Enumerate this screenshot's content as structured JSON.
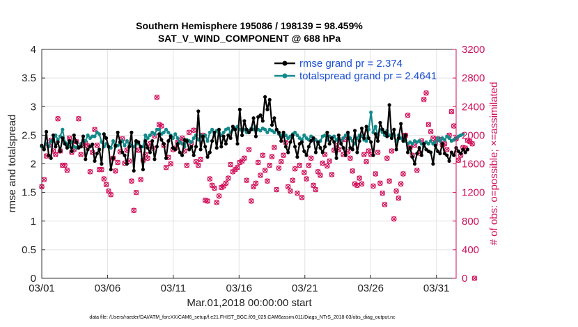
{
  "chart_data": {
    "type": "line",
    "title": "Southern Hemisphere 195086 / 198139 = 98.459%",
    "subtitle": "SAT_V_WIND_COMPONENT @ 688 hPa",
    "xlabel": "Mar.01,2018 00:00:00 start",
    "ylabel": "rmse and totalspread",
    "ylabel_right": "# of obs: o=possible; ×=assimilated",
    "footer": "data file: /Users/raeder/DAI/ATM_forcXX/CAM6_setup/f.e21.FHIST_BGC.f09_025.CAM6assim.011/Diags_NTrS_2018-03/obs_diag_output.nc",
    "x_ticks": [
      "03/01",
      "03/06",
      "03/11",
      "03/16",
      "03/21",
      "03/26",
      "03/31"
    ],
    "y_ticks": [
      "0",
      "0.5",
      "1",
      "1.5",
      "2",
      "2.5",
      "3",
      "3.5",
      "4"
    ],
    "y2_ticks": [
      "0",
      "400",
      "800",
      "1200",
      "1600",
      "2000",
      "2400",
      "2800",
      "3200"
    ],
    "xlim": [
      1,
      32.5
    ],
    "ylim": [
      0,
      4
    ],
    "y2lim": [
      0,
      3200
    ],
    "grid": true,
    "legend_position": "top-right",
    "colors": {
      "rmse": "#000000",
      "totalspread": "#138a8a",
      "obs": "#d1105a",
      "legend_text": "#1a4fd6"
    },
    "series": [
      {
        "name": "rmse grand pr = 2.374",
        "axis": "left",
        "values": [
          2.32,
          2.25,
          2.56,
          2.15,
          2.1,
          2.5,
          2.3,
          2.38,
          2.22,
          2.45,
          2.35,
          2.28,
          2.4,
          2.22,
          2.5,
          2.38,
          2.28,
          2.3,
          2.48,
          2.08,
          2.25,
          2.3,
          2.34,
          2.05,
          2.18,
          2.25,
          2.0,
          2.52,
          2.45,
          2.3,
          1.9,
          2.1,
          2.32,
          2.55,
          2.38,
          2.2,
          2.15,
          2.0,
          2.3,
          2.55,
          1.88,
          2.4,
          2.38,
          2.3,
          1.9,
          2.4,
          2.28,
          2.2,
          2.4,
          2.08,
          2.3,
          2.52,
          2.42,
          2.35,
          2.1,
          2.4,
          2.48,
          2.28,
          2.25,
          2.35,
          2.2,
          2.15,
          2.42,
          2.4,
          2.25,
          2.3,
          2.15,
          2.3,
          2.92,
          2.25,
          2.48,
          2.3,
          2.12,
          2.2,
          2.4,
          2.55,
          2.28,
          2.6,
          2.3,
          2.48,
          2.35,
          2.5,
          2.45,
          2.65,
          2.6,
          2.35,
          2.95,
          2.5,
          2.75,
          2.6,
          2.55,
          2.6,
          2.8,
          2.48,
          2.82,
          2.85,
          2.75,
          3.17,
          2.95,
          3.12,
          2.68,
          2.8,
          2.6,
          2.55,
          2.4,
          2.55,
          2.3,
          2.2,
          2.38,
          2.5,
          2.3,
          2.12,
          2.35,
          2.38,
          2.22,
          2.15,
          2.3,
          2.4,
          2.45,
          2.2,
          2.38,
          2.28,
          2.2,
          2.3,
          2.55,
          2.35,
          2.45,
          2.38,
          2.1,
          2.5,
          2.35,
          2.28,
          2.15,
          2.55,
          2.28,
          2.25,
          2.58,
          2.2,
          2.4,
          2.62,
          2.45,
          2.65,
          2.45,
          2.38,
          2.15,
          2.52,
          2.4,
          2.72,
          2.6,
          2.55,
          2.48,
          3.03,
          2.45,
          2.6,
          2.25,
          2.45,
          2.7,
          2.4,
          2.5,
          2.2,
          2.28,
          2.12,
          2.0,
          2.18,
          2.28,
          2.15,
          2.35,
          2.25,
          2.22,
          2.2,
          2.0,
          2.32,
          2.22,
          2.18,
          2.35,
          2.18,
          2.15,
          2.05,
          2.2,
          2.15,
          2.28,
          2.22,
          2.18,
          2.25,
          2.2,
          2.25
        ]
      },
      {
        "name": "totalspread grand pr = 2.4641",
        "axis": "left",
        "values": [
          2.3,
          2.28,
          2.35,
          2.3,
          2.4,
          2.4,
          2.5,
          2.42,
          2.48,
          2.6,
          2.38,
          2.35,
          2.3,
          2.38,
          2.3,
          2.28,
          2.3,
          2.35,
          2.42,
          2.4,
          2.5,
          2.45,
          2.48,
          2.48,
          2.55,
          2.52,
          2.38,
          2.3,
          2.35,
          2.3,
          2.28,
          2.4,
          2.3,
          2.32,
          2.35,
          2.4,
          2.32,
          2.4,
          2.35,
          2.32,
          2.3,
          2.38,
          2.35,
          2.3,
          2.3,
          2.5,
          2.45,
          2.5,
          2.55,
          2.52,
          2.6,
          2.6,
          2.52,
          2.55,
          2.6,
          2.55,
          2.5,
          2.45,
          2.52,
          2.45,
          2.38,
          2.35,
          2.3,
          2.42,
          2.4,
          2.38,
          2.45,
          2.5,
          2.42,
          2.5,
          2.45,
          2.5,
          2.4,
          2.55,
          2.6,
          2.52,
          2.58,
          2.55,
          2.5,
          2.55,
          2.6,
          2.62,
          2.55,
          2.6,
          2.62,
          2.65,
          2.6,
          2.58,
          2.6,
          2.55,
          2.58,
          2.62,
          2.6,
          2.65,
          2.6,
          2.58,
          2.62,
          2.6,
          2.55,
          2.6,
          2.58,
          2.55,
          2.6,
          2.52,
          2.5,
          2.48,
          2.5,
          2.45,
          2.48,
          2.52,
          2.55,
          2.5,
          2.45,
          2.42,
          2.5,
          2.45,
          2.42,
          2.48,
          2.45,
          2.42,
          2.35,
          2.4,
          2.48,
          2.5,
          2.42,
          2.48,
          2.45,
          2.48,
          2.42,
          2.45,
          2.4,
          2.45,
          2.5,
          2.52,
          2.45,
          2.4,
          2.35,
          2.45,
          2.5,
          2.48,
          2.42,
          2.4,
          2.6,
          2.9,
          2.55,
          2.65,
          2.5,
          2.6,
          2.55,
          2.5,
          2.58,
          2.5,
          2.45,
          2.5,
          2.38,
          2.5,
          2.45,
          2.42,
          2.4,
          2.35,
          2.38,
          2.35,
          2.4,
          2.38,
          2.4,
          2.35,
          2.3,
          2.38,
          2.35,
          2.4,
          2.35,
          2.38,
          2.45,
          2.4,
          2.45,
          2.42,
          2.48,
          2.45,
          2.4,
          2.42,
          2.45,
          2.48,
          2.5,
          2.52
        ]
      },
      {
        "name": "# of obs",
        "axis": "right",
        "values": [
          1280,
          1380,
          1710,
          1860,
          1930,
          1780,
          1730,
          2230,
          1780,
          1580,
          1580,
          1510,
          1960,
          1760,
          1800,
          1910,
          2230,
          1730,
          1860,
          1890,
          1850,
          1490,
          1760,
          2080,
          1860,
          1520,
          1520,
          1390,
          1310,
          1220,
          1170,
          1680,
          1500,
          1620,
          1770,
          1950,
          1610,
          1790,
          1640,
          1360,
          950,
          1200,
          1790,
          1380,
          1650,
          1730,
          1680,
          1880,
          1820,
          1990,
          2530,
          2150,
          2130,
          1860,
          1550,
          1690,
          1600,
          1800,
          1820,
          1900,
          1920,
          1960,
          1780,
          1580,
          2040,
          1890,
          2070,
          1630,
          1580,
          1660,
          2000,
          1090,
          1080,
          1390,
          1300,
          1260,
          1060,
          1150,
          1270,
          1290,
          1330,
          1400,
          1590,
          1490,
          1520,
          1550,
          1620,
          1640,
          1680,
          1370,
          1800,
          1080,
          1280,
          1330,
          1620,
          1440,
          1720,
          1510,
          1360,
          1580,
          1700,
          1830,
          1240,
          1540,
          1630,
          1720,
          1900,
          1280,
          1220,
          1370,
          1530,
          1190,
          1580,
          1130,
          1480,
          1390,
          1580,
          1680,
          1300,
          1240,
          1490,
          1440,
          1610,
          1730,
          1570,
          1640,
          1450,
          1790,
          1850,
          1800,
          1930,
          1730,
          1940,
          1770,
          1680,
          1500,
          1320,
          1300,
          1400,
          1320,
          1730,
          1630,
          1780,
          1730,
          1290,
          1460,
          1760,
          1330,
          1190,
          1030,
          1680,
          1360,
          1780,
          830,
          1220,
          1120,
          1320,
          1460,
          2000,
          2280,
          1830,
          1720,
          1860,
          1510,
          1750,
          1920,
          2500,
          2590,
          2150,
          2050,
          1960,
          1890,
          1950,
          1940,
          1870,
          1880,
          1800,
          2000,
          2330,
          2130,
          1950,
          1650,
          1720,
          1830,
          1820,
          1930,
          1910,
          1880,
          0
        ]
      }
    ]
  }
}
